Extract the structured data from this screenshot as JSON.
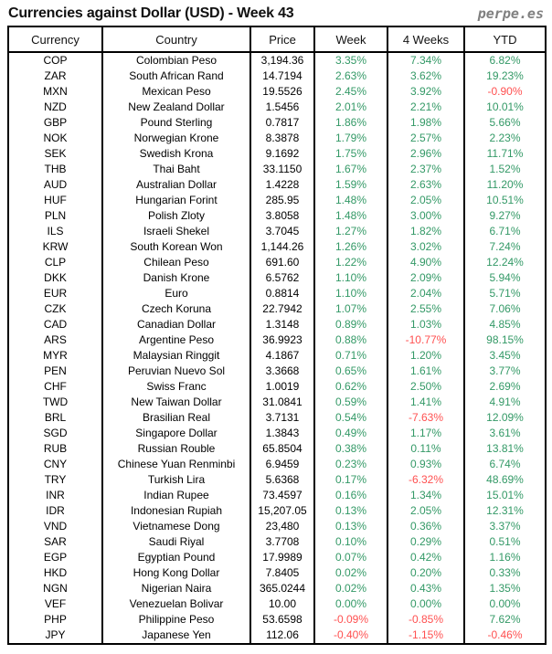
{
  "page": {
    "title": "Currencies against Dollar (USD) - Week 43",
    "logo": "perpe.es"
  },
  "colors": {
    "positive_green": "#339966",
    "negative_red": "#FF5050",
    "border_black": "#000000",
    "logo_gray": "#808080"
  },
  "chart_data": {
    "type": "table",
    "title": "Currencies against Dollar (USD) - Week 43",
    "columns": [
      "Currency",
      "Country",
      "Price",
      "Week",
      "4 Weeks",
      "YTD"
    ],
    "rows": [
      [
        "COP",
        "Colombian Peso",
        "3,194.36",
        "3.35%",
        "7.34%",
        "6.82%"
      ],
      [
        "ZAR",
        "South African Rand",
        "14.7194",
        "2.63%",
        "3.62%",
        "19.23%"
      ],
      [
        "MXN",
        "Mexican Peso",
        "19.5526",
        "2.45%",
        "3.92%",
        "-0.90%"
      ],
      [
        "NZD",
        "New Zealand Dollar",
        "1.5456",
        "2.01%",
        "2.21%",
        "10.01%"
      ],
      [
        "GBP",
        "Pound Sterling",
        "0.7817",
        "1.86%",
        "1.98%",
        "5.66%"
      ],
      [
        "NOK",
        "Norwegian Krone",
        "8.3878",
        "1.79%",
        "2.57%",
        "2.23%"
      ],
      [
        "SEK",
        "Swedish Krona",
        "9.1692",
        "1.75%",
        "2.96%",
        "11.71%"
      ],
      [
        "THB",
        "Thai Baht",
        "33.1150",
        "1.67%",
        "2.37%",
        "1.52%"
      ],
      [
        "AUD",
        "Australian Dollar",
        "1.4228",
        "1.59%",
        "2.63%",
        "11.20%"
      ],
      [
        "HUF",
        "Hungarian Forint",
        "285.95",
        "1.48%",
        "2.05%",
        "10.51%"
      ],
      [
        "PLN",
        "Polish Zloty",
        "3.8058",
        "1.48%",
        "3.00%",
        "9.27%"
      ],
      [
        "ILS",
        "Israeli Shekel",
        "3.7045",
        "1.27%",
        "1.82%",
        "6.71%"
      ],
      [
        "KRW",
        "South Korean Won",
        "1,144.26",
        "1.26%",
        "3.02%",
        "7.24%"
      ],
      [
        "CLP",
        "Chilean Peso",
        "691.60",
        "1.22%",
        "4.90%",
        "12.24%"
      ],
      [
        "DKK",
        "Danish Krone",
        "6.5762",
        "1.10%",
        "2.09%",
        "5.94%"
      ],
      [
        "EUR",
        "Euro",
        "0.8814",
        "1.10%",
        "2.04%",
        "5.71%"
      ],
      [
        "CZK",
        "Czech Koruna",
        "22.7942",
        "1.07%",
        "2.55%",
        "7.06%"
      ],
      [
        "CAD",
        "Canadian Dollar",
        "1.3148",
        "0.89%",
        "1.03%",
        "4.85%"
      ],
      [
        "ARS",
        "Argentine Peso",
        "36.9923",
        "0.88%",
        "-10.77%",
        "98.15%"
      ],
      [
        "MYR",
        "Malaysian Ringgit",
        "4.1867",
        "0.71%",
        "1.20%",
        "3.45%"
      ],
      [
        "PEN",
        "Peruvian Nuevo Sol",
        "3.3668",
        "0.65%",
        "1.61%",
        "3.77%"
      ],
      [
        "CHF",
        "Swiss Franc",
        "1.0019",
        "0.62%",
        "2.50%",
        "2.69%"
      ],
      [
        "TWD",
        "New Taiwan Dollar",
        "31.0841",
        "0.59%",
        "1.41%",
        "4.91%"
      ],
      [
        "BRL",
        "Brasilian Real",
        "3.7131",
        "0.54%",
        "-7.63%",
        "12.09%"
      ],
      [
        "SGD",
        "Singapore Dollar",
        "1.3843",
        "0.49%",
        "1.17%",
        "3.61%"
      ],
      [
        "RUB",
        "Russian Rouble",
        "65.8504",
        "0.38%",
        "0.11%",
        "13.81%"
      ],
      [
        "CNY",
        "Chinese Yuan Renminbi",
        "6.9459",
        "0.23%",
        "0.93%",
        "6.74%"
      ],
      [
        "TRY",
        "Turkish Lira",
        "5.6368",
        "0.17%",
        "-6.32%",
        "48.69%"
      ],
      [
        "INR",
        "Indian Rupee",
        "73.4597",
        "0.16%",
        "1.34%",
        "15.01%"
      ],
      [
        "IDR",
        "Indonesian Rupiah",
        "15,207.05",
        "0.13%",
        "2.05%",
        "12.31%"
      ],
      [
        "VND",
        "Vietnamese Dong",
        "23,480",
        "0.13%",
        "0.36%",
        "3.37%"
      ],
      [
        "SAR",
        "Saudi Riyal",
        "3.7708",
        "0.10%",
        "0.29%",
        "0.51%"
      ],
      [
        "EGP",
        "Egyptian Pound",
        "17.9989",
        "0.07%",
        "0.42%",
        "1.16%"
      ],
      [
        "HKD",
        "Hong Kong Dollar",
        "7.8405",
        "0.02%",
        "0.20%",
        "0.33%"
      ],
      [
        "NGN",
        "Nigerian Naira",
        "365.0244",
        "0.02%",
        "0.43%",
        "1.35%"
      ],
      [
        "VEF",
        "Venezuelan Bolivar",
        "10.00",
        "0.00%",
        "0.00%",
        "0.00%"
      ],
      [
        "PHP",
        "Philippine Peso",
        "53.6598",
        "-0.09%",
        "-0.85%",
        "7.62%"
      ],
      [
        "JPY",
        "Japanese Yen",
        "112.06",
        "-0.40%",
        "-1.15%",
        "-0.46%"
      ]
    ]
  }
}
